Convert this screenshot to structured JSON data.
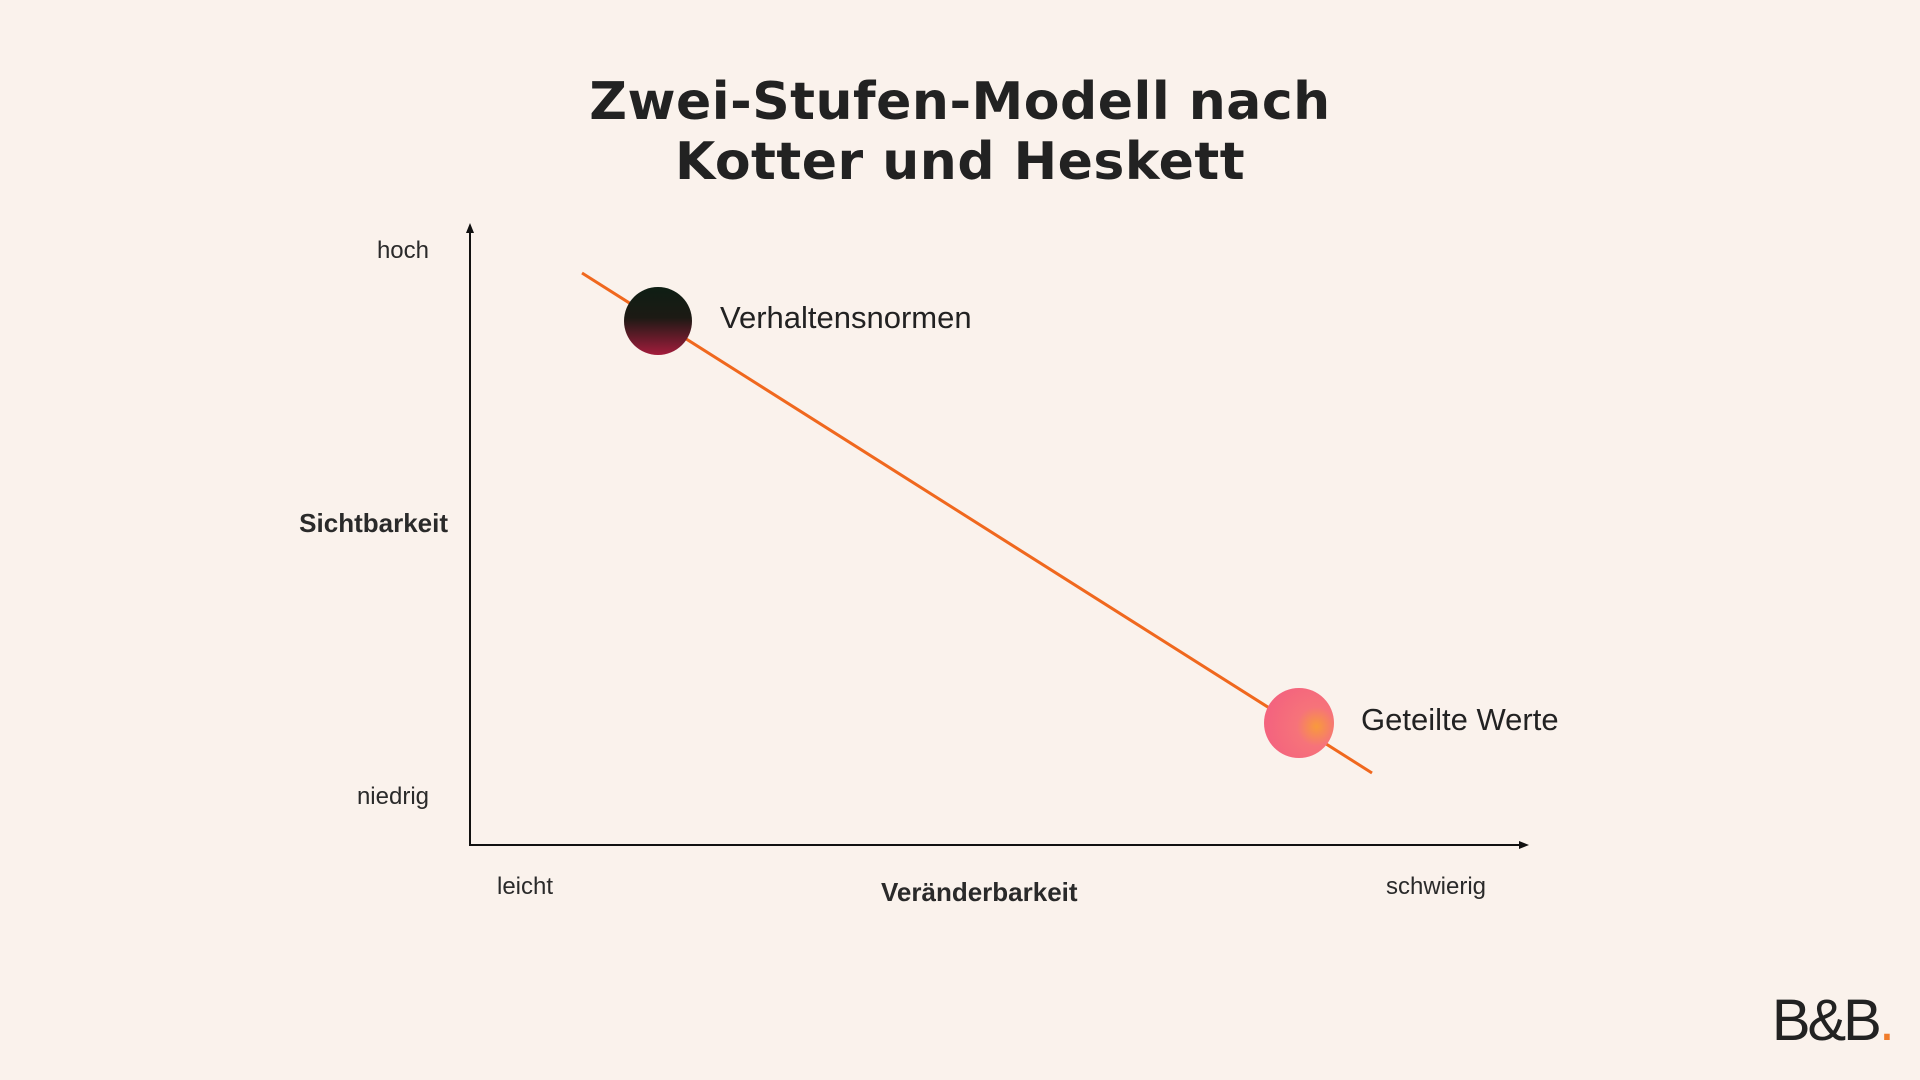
{
  "title": {
    "line1": "Zwei-Stufen-Modell nach",
    "line2": "Kotter und Heskett"
  },
  "axes": {
    "y_label": "Sichtbarkeit",
    "y_high": "hoch",
    "y_low": "niedrig",
    "x_label": "Veränderbarkeit",
    "x_low": "leicht",
    "x_high": "schwierig"
  },
  "points": [
    {
      "label": "Verhaltensnormen",
      "color_top": "#0E1E14",
      "color_bottom": "#A31C3C"
    },
    {
      "label": "Geteilte Werte",
      "color_main": "#F4647E",
      "color_accent": "#F89A3C"
    }
  ],
  "line_color": "#F0681E",
  "logo": {
    "text": "B&B",
    "dot": ".",
    "dot_color": "#F07C2A"
  }
}
